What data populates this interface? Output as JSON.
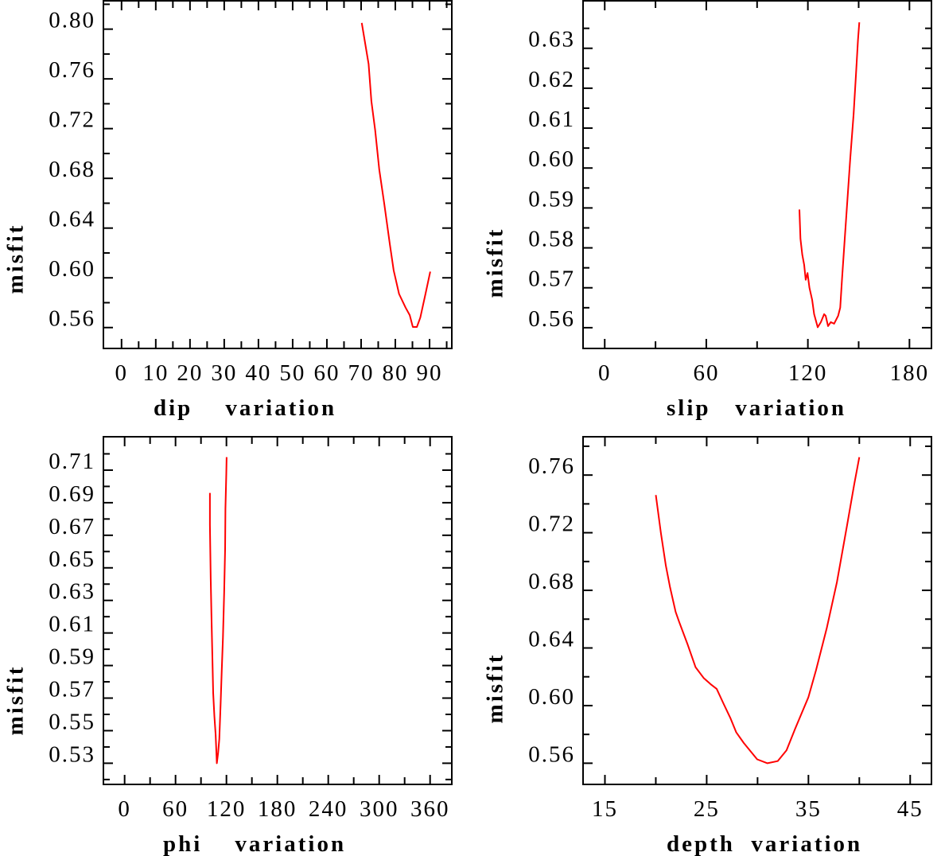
{
  "curve_color": "#ff0000",
  "chart_data": [
    {
      "type": "line",
      "title": "",
      "xlabel": "dip    variation",
      "ylabel": "misfit",
      "xlim": [
        -5.3,
        96.5
      ],
      "ylim": [
        0.5432,
        0.8228
      ],
      "grid": false,
      "xticks": [
        0,
        10,
        20,
        30,
        40,
        50,
        60,
        70,
        80,
        90
      ],
      "xtick_labels": [
        "0",
        "10",
        "20",
        "30",
        "40",
        "50",
        "60",
        "70",
        "80",
        "90"
      ],
      "xminor": [
        5,
        15,
        25,
        35,
        45,
        55,
        65,
        75,
        85,
        95
      ],
      "yticks": [
        0.56,
        0.6,
        0.64,
        0.68,
        0.72,
        0.76,
        0.8
      ],
      "ytick_labels": [
        "0.56",
        "0.60",
        "0.64",
        "0.68",
        "0.72",
        "0.76",
        "0.80"
      ],
      "yminor": [
        0.58,
        0.62,
        0.66,
        0.7,
        0.74,
        0.78,
        0.82
      ],
      "series": [
        {
          "name": "misfit",
          "x": [
            70.2,
            72.2,
            73,
            74.1,
            75.3,
            76.8,
            78.4,
            79.5,
            81.1,
            83,
            84.2,
            85.1,
            86.3,
            87.3,
            88.8,
            90.2
          ],
          "y": [
            0.805,
            0.772,
            0.742,
            0.719,
            0.687,
            0.659,
            0.627,
            0.606,
            0.587,
            0.576,
            0.57,
            0.5605,
            0.5605,
            0.568,
            0.587,
            0.605
          ]
        }
      ]
    },
    {
      "type": "line",
      "title": "",
      "xlabel": "slip   variation",
      "ylabel": "misfit",
      "xlim": [
        -12.8,
        193
      ],
      "ylim": [
        0.5548,
        0.6419
      ],
      "grid": false,
      "xticks": [
        0,
        60,
        120,
        180
      ],
      "xtick_labels": [
        "0",
        "60",
        "120",
        "180"
      ],
      "xminor": [
        30,
        90,
        150
      ],
      "yticks": [
        0.56,
        0.57,
        0.58,
        0.59,
        0.6,
        0.61,
        0.62,
        0.63
      ],
      "ytick_labels": [
        "0.56",
        "0.57",
        "0.58",
        "0.59",
        "0.60",
        "0.61",
        "0.62",
        "0.63"
      ],
      "yminor": [
        0.565,
        0.575,
        0.585,
        0.595,
        0.605,
        0.615,
        0.625,
        0.635
      ],
      "series": [
        {
          "name": "misfit",
          "x": [
            115,
            115.6,
            116.7,
            117.8,
            118.7,
            119.8,
            120.9,
            122.5,
            123.7,
            125.8,
            127.7,
            129.6,
            130.5,
            131.9,
            133.5,
            135.5,
            137.9,
            139.1,
            140.2,
            141.8,
            143.4,
            145,
            147,
            148.4,
            149.6,
            150.4
          ],
          "y": [
            0.5896,
            0.5823,
            0.5783,
            0.5757,
            0.572,
            0.5737,
            0.57,
            0.567,
            0.5634,
            0.5601,
            0.5614,
            0.5634,
            0.563,
            0.5604,
            0.5614,
            0.561,
            0.563,
            0.565,
            0.5723,
            0.5823,
            0.5922,
            0.6021,
            0.6134,
            0.6234,
            0.632,
            0.6365
          ]
        }
      ]
    },
    {
      "type": "line",
      "title": "",
      "xlabel": "phi    variation",
      "ylabel": "misfit",
      "xlim": [
        -25,
        385.6
      ],
      "ylim": [
        0.517,
        0.7305
      ],
      "grid": false,
      "xticks": [
        0,
        60,
        120,
        180,
        240,
        300,
        360
      ],
      "xtick_labels": [
        "0",
        "60",
        "120",
        "180",
        "240",
        "300",
        "360"
      ],
      "xminor": [
        30,
        90,
        150,
        210,
        270,
        330
      ],
      "yticks": [
        0.53,
        0.55,
        0.57,
        0.59,
        0.61,
        0.63,
        0.65,
        0.67,
        0.69,
        0.71
      ],
      "ytick_labels": [
        "0.53",
        "0.55",
        "0.57",
        "0.59",
        "0.61",
        "0.63",
        "0.65",
        "0.67",
        "0.69",
        "0.71"
      ],
      "yminor": [
        0.52,
        0.54,
        0.56,
        0.58,
        0.6,
        0.62,
        0.64,
        0.66,
        0.68,
        0.7,
        0.72
      ],
      "series": [
        {
          "name": "misfit",
          "x": [
            100.5,
            100.5,
            101.5,
            102.3,
            103.3,
            104.4,
            105.8,
            107.3,
            108.7,
            110.2,
            111.6,
            113.1,
            114.5,
            115.9,
            117.3,
            118.4,
            118.8,
            119.8,
            120.2
          ],
          "y": [
            0.696,
            0.6763,
            0.6434,
            0.6215,
            0.5973,
            0.5732,
            0.559,
            0.5475,
            0.53,
            0.5363,
            0.5449,
            0.5657,
            0.5873,
            0.6073,
            0.6347,
            0.6615,
            0.6863,
            0.708,
            0.718
          ]
        }
      ]
    },
    {
      "type": "line",
      "title": "",
      "xlabel": "depth  variation",
      "ylabel": "misfit",
      "xlim": [
        12.85,
        47.09
      ],
      "ylim": [
        0.5453,
        0.7866
      ],
      "grid": false,
      "xticks": [
        15,
        25,
        35,
        45
      ],
      "xtick_labels": [
        "15",
        "25",
        "35",
        "45"
      ],
      "xminor": [
        20,
        30,
        40
      ],
      "yticks": [
        0.56,
        0.6,
        0.64,
        0.68,
        0.72,
        0.76
      ],
      "ytick_labels": [
        "0.56",
        "0.60",
        "0.64",
        "0.68",
        "0.72",
        "0.76"
      ],
      "yminor": [
        0.58,
        0.62,
        0.66,
        0.7,
        0.74,
        0.78
      ],
      "series": [
        {
          "name": "misfit",
          "x": [
            20,
            20.5,
            20.99,
            21.4,
            21.95,
            22.3,
            23.1,
            23.9,
            24.7,
            25.45,
            25.98,
            26.6,
            27.35,
            27.9,
            28.65,
            29.96,
            30.97,
            31.98,
            32.85,
            33.7,
            35,
            35.75,
            36.8,
            37.8,
            38.8,
            39.5,
            40
          ],
          "y": [
            0.7461,
            0.7197,
            0.6971,
            0.682,
            0.665,
            0.658,
            0.643,
            0.6267,
            0.6192,
            0.6145,
            0.6116,
            0.6022,
            0.591,
            0.5815,
            0.574,
            0.5627,
            0.56,
            0.5615,
            0.569,
            0.584,
            0.6058,
            0.6246,
            0.6538,
            0.6858,
            0.7254,
            0.7536,
            0.7724
          ]
        }
      ]
    }
  ]
}
